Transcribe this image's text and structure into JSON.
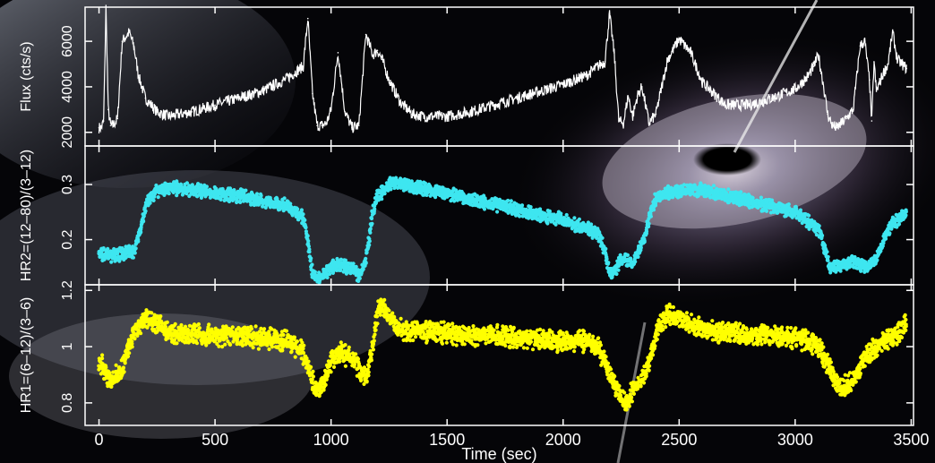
{
  "chart_data": [
    {
      "type": "line",
      "ylabel": "Flux (cts/s)",
      "yticks": [
        2000,
        4000,
        6000
      ],
      "ylim": [
        1400,
        7500
      ],
      "xlim": [
        -60,
        3510
      ],
      "color": "#ffffff",
      "series": [
        {
          "x": [
            0,
            10,
            20,
            30,
            40,
            50,
            60,
            80,
            100,
            130,
            150,
            170,
            200,
            250,
            300,
            400,
            500,
            600,
            700,
            800,
            880,
            900,
            920,
            940,
            960,
            980,
            1000,
            1030,
            1060,
            1090,
            1120,
            1150,
            1180,
            1200,
            1220,
            1250,
            1300,
            1350,
            1400,
            1500,
            1600,
            1700,
            1800,
            1900,
            2000,
            2100,
            2150,
            2180,
            2200,
            2220,
            2240,
            2260,
            2280,
            2300,
            2320,
            2340,
            2370,
            2400,
            2450,
            2500,
            2550,
            2600,
            2700,
            2800,
            2900,
            3000,
            3050,
            3080,
            3100,
            3120,
            3140,
            3160,
            3180,
            3200,
            3220,
            3250,
            3280,
            3300,
            3320,
            3330,
            3340,
            3350,
            3380,
            3400,
            3420,
            3440,
            3460,
            3480
          ],
          "y": [
            2200,
            2200,
            2500,
            7500,
            3000,
            2300,
            2300,
            2600,
            6000,
            6400,
            5800,
            4500,
            3500,
            2900,
            2700,
            2900,
            3200,
            3500,
            3800,
            4300,
            4900,
            7000,
            3700,
            2300,
            2300,
            2400,
            3000,
            5500,
            2900,
            2200,
            2300,
            6300,
            5400,
            5600,
            5200,
            4300,
            3300,
            2800,
            2700,
            2700,
            2900,
            3200,
            3500,
            3800,
            4100,
            4500,
            4900,
            5100,
            7200,
            5500,
            2500,
            2400,
            3600,
            2700,
            3600,
            4000,
            2400,
            2800,
            5200,
            6100,
            5500,
            4200,
            3200,
            3200,
            3500,
            3900,
            4400,
            4900,
            5400,
            4200,
            2800,
            2300,
            2200,
            2400,
            2600,
            3000,
            5800,
            6000,
            4300,
            2500,
            5100,
            3800,
            4600,
            5000,
            6400,
            5200,
            5000,
            4800
          ]
        }
      ]
    },
    {
      "type": "scatter",
      "ylabel": "HR2=(12–80)/(3–12)",
      "yticks": [
        0.2,
        0.3
      ],
      "ytick_labels": [
        "0.2",
        "0.3"
      ],
      "ylim": [
        0.118,
        0.37
      ],
      "xlim": [
        -60,
        3510
      ],
      "color": "#3ee6f0",
      "series": [
        {
          "x": [
            0,
            50,
            100,
            150,
            180,
            200,
            250,
            300,
            400,
            500,
            600,
            700,
            800,
            850,
            880,
            900,
            920,
            950,
            1000,
            1050,
            1100,
            1120,
            1150,
            1180,
            1200,
            1230,
            1250,
            1300,
            1400,
            1500,
            1600,
            1700,
            1800,
            1900,
            2000,
            2100,
            2150,
            2180,
            2200,
            2220,
            2250,
            2300,
            2350,
            2380,
            2400,
            2450,
            2500,
            2550,
            2600,
            2700,
            2800,
            2900,
            3000,
            3100,
            3150,
            3200,
            3250,
            3300,
            3350,
            3400,
            3450,
            3480
          ],
          "y": [
            0.175,
            0.17,
            0.175,
            0.178,
            0.22,
            0.26,
            0.29,
            0.295,
            0.29,
            0.285,
            0.28,
            0.27,
            0.262,
            0.25,
            0.24,
            0.195,
            0.135,
            0.13,
            0.15,
            0.155,
            0.145,
            0.135,
            0.16,
            0.25,
            0.28,
            0.29,
            0.3,
            0.3,
            0.293,
            0.283,
            0.273,
            0.265,
            0.255,
            0.245,
            0.235,
            0.22,
            0.21,
            0.18,
            0.14,
            0.14,
            0.165,
            0.16,
            0.2,
            0.255,
            0.275,
            0.285,
            0.288,
            0.29,
            0.29,
            0.28,
            0.27,
            0.26,
            0.25,
            0.22,
            0.15,
            0.155,
            0.16,
            0.15,
            0.165,
            0.22,
            0.24,
            0.25
          ]
        }
      ]
    },
    {
      "type": "scatter",
      "ylabel": "HR1=(6–12)/(3–6)",
      "yticks": [
        0.8,
        1,
        1.2
      ],
      "ytick_labels": [
        "0.8",
        "1",
        "1.2"
      ],
      "ylim": [
        0.72,
        1.22
      ],
      "xlim": [
        -60,
        3510
      ],
      "xlabel": "Time (sec)",
      "xticks": [
        0,
        500,
        1000,
        1500,
        2000,
        2500,
        3000,
        3500
      ],
      "color": "#ffff00",
      "series": [
        {
          "x": [
            0,
            50,
            100,
            150,
            200,
            250,
            300,
            400,
            500,
            600,
            700,
            800,
            850,
            880,
            900,
            930,
            950,
            980,
            1000,
            1050,
            1100,
            1150,
            1180,
            1200,
            1220,
            1250,
            1300,
            1400,
            1500,
            1600,
            1700,
            1800,
            1900,
            2000,
            2100,
            2150,
            2200,
            2250,
            2280,
            2300,
            2350,
            2380,
            2400,
            2450,
            2500,
            2600,
            2700,
            2800,
            2900,
            3000,
            3050,
            3100,
            3150,
            3200,
            3250,
            3300,
            3350,
            3400,
            3450,
            3480
          ],
          "y": [
            0.95,
            0.88,
            0.92,
            1.05,
            1.1,
            1.08,
            1.05,
            1.05,
            1.04,
            1.04,
            1.03,
            1.02,
            1.0,
            0.98,
            0.93,
            0.86,
            0.84,
            0.9,
            0.95,
            0.98,
            0.95,
            0.88,
            1.0,
            1.12,
            1.15,
            1.1,
            1.06,
            1.05,
            1.05,
            1.04,
            1.04,
            1.03,
            1.03,
            1.02,
            1.02,
            1.0,
            0.9,
            0.82,
            0.8,
            0.85,
            0.9,
            0.97,
            1.05,
            1.12,
            1.1,
            1.06,
            1.05,
            1.04,
            1.04,
            1.03,
            1.02,
            1.0,
            0.92,
            0.85,
            0.88,
            0.97,
            1.0,
            1.03,
            1.05,
            1.08
          ]
        }
      ]
    }
  ]
}
